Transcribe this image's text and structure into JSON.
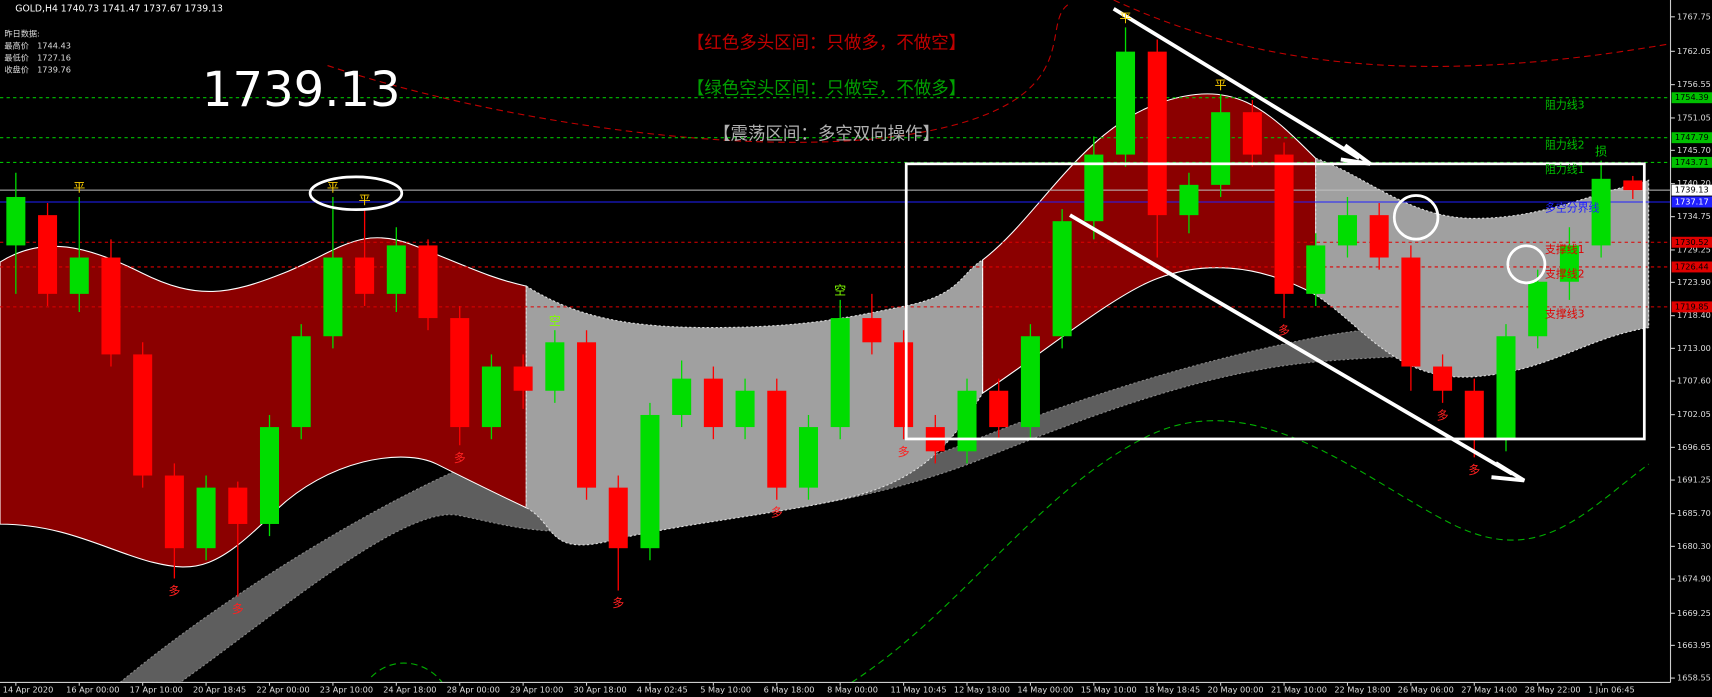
{
  "chart_data": {
    "type": "candlestick",
    "header": "GOLD,H4  1740.73 1741.47 1737.67 1739.13",
    "info_title": "昨日数据:",
    "info": [
      {
        "label": "最高价",
        "value": 1744.43
      },
      {
        "label": "最低价",
        "value": 1727.16
      },
      {
        "label": "收盘价",
        "value": 1739.76
      }
    ],
    "current_price": 1739.13,
    "annotations": [
      {
        "text": "【红色多头区间：只做多，不做空】",
        "color": "#c00000"
      },
      {
        "text": "【绿色空头区间：只做空，不做多】",
        "color": "#00a000"
      },
      {
        "text": "【震荡区间：多空双向操作】",
        "color": "#b0b0b0"
      }
    ],
    "categories": [
      "14 Apr 2020",
      null,
      "16 Apr 00:00",
      null,
      "17 Apr 10:00",
      null,
      "20 Apr 18:45",
      null,
      "22 Apr 00:00",
      null,
      "23 Apr 10:00",
      null,
      "24 Apr 18:00",
      null,
      "28 Apr 00:00",
      null,
      "29 Apr 10:00",
      null,
      "30 Apr 18:00",
      null,
      "4 May 02:45",
      null,
      "5 May 10:00",
      null,
      "6 May 18:00",
      null,
      "8 May 00:00",
      null,
      "11 May 10:45",
      null,
      "12 May 18:00",
      null,
      "14 May 00:00",
      null,
      "15 May 10:00",
      null,
      "18 May 18:45",
      null,
      "20 May 00:00",
      null,
      "21 May 10:00",
      null,
      "22 May 18:00",
      null,
      "26 May 06:00",
      null,
      "27 May 14:00",
      null,
      "28 May 22:00",
      null,
      "1 Jun 06:45",
      null
    ],
    "open": [
      1730,
      1735,
      1722,
      1728,
      1712,
      1692,
      1680,
      1690,
      1684,
      1700,
      1715,
      1728,
      1722,
      1730,
      1718,
      1700,
      1710,
      1706,
      1714,
      1690,
      1680,
      1702,
      1708,
      1700,
      1706,
      1690,
      1700,
      1718,
      1714,
      1700,
      1696,
      1706,
      1700,
      1715,
      1734,
      1745,
      1762,
      1735,
      1740,
      1752,
      1745,
      1722,
      1730,
      1735,
      1728,
      1710,
      1706,
      1698,
      1715,
      1724,
      1730,
      1740.73
    ],
    "high": [
      1742,
      1737,
      1738,
      1731,
      1714,
      1694,
      1692,
      1691,
      1702,
      1717,
      1738,
      1736,
      1733,
      1731,
      1720,
      1712,
      1712,
      1716,
      1716,
      1692,
      1704,
      1711,
      1710,
      1708,
      1708,
      1702,
      1721,
      1722,
      1716,
      1702,
      1708,
      1708,
      1717,
      1736,
      1748,
      1766,
      1764,
      1742,
      1755,
      1754,
      1747,
      1732,
      1738,
      1737,
      1730,
      1712,
      1708,
      1717,
      1726,
      1733,
      1744,
      1741.47
    ],
    "low": [
      1722,
      1720,
      1719,
      1710,
      1690,
      1675,
      1678,
      1672,
      1682,
      1698,
      1713,
      1720,
      1719,
      1716,
      1697,
      1698,
      1703,
      1704,
      1688,
      1673,
      1678,
      1700,
      1698,
      1698,
      1688,
      1688,
      1698,
      1712,
      1698,
      1694,
      1694,
      1698,
      1698,
      1713,
      1731,
      1743,
      1728,
      1732,
      1738,
      1743,
      1718,
      1720,
      1728,
      1726,
      1706,
      1704,
      1695,
      1696,
      1713,
      1721,
      1728,
      1737.67
    ],
    "close": [
      1738,
      1722,
      1728,
      1712,
      1692,
      1680,
      1690,
      1684,
      1700,
      1715,
      1728,
      1722,
      1730,
      1718,
      1700,
      1710,
      1706,
      1714,
      1690,
      1680,
      1702,
      1708,
      1700,
      1706,
      1690,
      1700,
      1718,
      1714,
      1700,
      1696,
      1706,
      1700,
      1715,
      1734,
      1745,
      1762,
      1735,
      1740,
      1752,
      1745,
      1722,
      1730,
      1735,
      1728,
      1710,
      1706,
      1698,
      1715,
      1724,
      1730,
      1741,
      1739.13
    ],
    "up_color": "#00dd00",
    "down_color": "#ff0000",
    "ylim": [
      1657.83,
      1770.16
    ],
    "yticks": [
      1767.75,
      1762.05,
      1756.55,
      1751.05,
      {
        "value": 1745.7,
        "label": "1745.70"
      },
      {
        "value": 1740.2,
        "label": "1740.20"
      },
      1734.75,
      1729.25,
      {
        "value": 1723.9,
        "label": "1723.90"
      },
      {
        "value": 1718.4,
        "label": "1718.40"
      },
      {
        "value": 1713,
        "label": "1713.00"
      },
      {
        "value": 1707.6,
        "label": "1707.60"
      },
      1702.05,
      1696.65,
      1691.25,
      {
        "value": 1685.7,
        "label": "1685.70"
      },
      {
        "value": 1680.3,
        "label": "1680.30"
      },
      {
        "value": 1674.9,
        "label": "1674.90"
      },
      1669.25,
      1663.95,
      1658.55
    ],
    "levels": [
      {
        "name": "阻力线3",
        "value": 1754.39,
        "color": "#00c000"
      },
      {
        "name": "阻力线2",
        "value": 1747.79,
        "color": "#00c000"
      },
      {
        "name": "阻力线1",
        "value": 1743.71,
        "color": "#00c000"
      },
      {
        "name": "多空分界线",
        "value": 1737.17,
        "color": "#2020ff"
      },
      {
        "name": "支撑线1",
        "value": 1730.52,
        "color": "#e00000"
      },
      {
        "name": "支撑线2",
        "value": 1726.44,
        "color": "#e00000"
      },
      {
        "name": "支撑线3",
        "value": 1719.85,
        "color": "#e00000"
      }
    ],
    "markers": [
      {
        "text": "平",
        "candle": 2,
        "pos": "above",
        "color": "#ffd000"
      },
      {
        "text": "多",
        "candle": 5,
        "pos": "below",
        "color": "#ff2020"
      },
      {
        "text": "多",
        "candle": 7,
        "pos": "below",
        "color": "#ff2020"
      },
      {
        "text": "平",
        "candle": 10,
        "pos": "above",
        "color": "#ffd000"
      },
      {
        "text": "平",
        "candle": 11,
        "pos": "above",
        "color": "#ffd000"
      },
      {
        "text": "多",
        "candle": 14,
        "pos": "below",
        "color": "#ff2020"
      },
      {
        "text": "空",
        "candle": 17,
        "pos": "above",
        "color": "#80ff00"
      },
      {
        "text": "多",
        "candle": 19,
        "pos": "below",
        "color": "#ff2020"
      },
      {
        "text": "多",
        "candle": 24,
        "pos": "below",
        "color": "#ff2020"
      },
      {
        "text": "空",
        "candle": 26,
        "pos": "above",
        "color": "#80ff00"
      },
      {
        "text": "多",
        "candle": 28,
        "pos": "below",
        "color": "#ff2020"
      },
      {
        "text": "平",
        "candle": 35,
        "pos": "above",
        "color": "#ffd000"
      },
      {
        "text": "平",
        "candle": 38,
        "pos": "above",
        "color": "#ffd000"
      },
      {
        "text": "多",
        "candle": 40,
        "pos": "below",
        "color": "#ff2020"
      },
      {
        "text": "多",
        "candle": 45,
        "pos": "below",
        "color": "#ff2020"
      },
      {
        "text": "多",
        "candle": 46,
        "pos": "below",
        "color": "#ff2020"
      },
      {
        "text": "损",
        "candle": 50,
        "pos": "above",
        "color": "#00c000"
      }
    ]
  }
}
